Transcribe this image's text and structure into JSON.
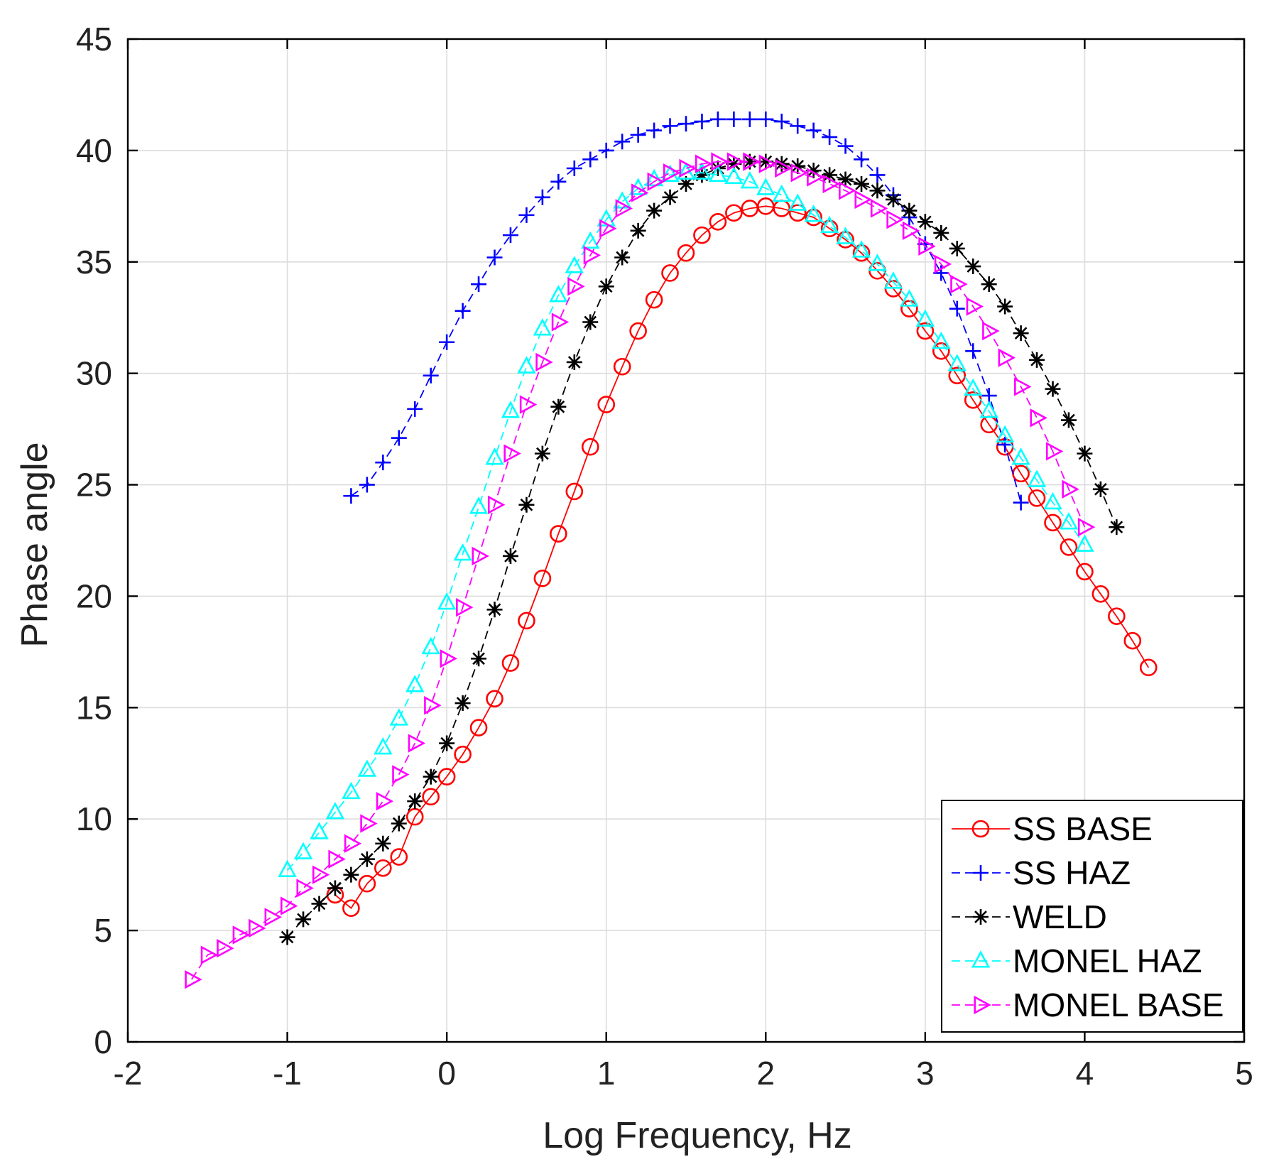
{
  "chart_data": {
    "type": "line",
    "xlabel": "Log Frequency, Hz",
    "ylabel": "Phase angle",
    "xlim": [
      -2,
      5
    ],
    "ylim": [
      0,
      45
    ],
    "xticks": [
      -2,
      -1,
      0,
      1,
      2,
      3,
      4,
      5
    ],
    "yticks": [
      0,
      5,
      10,
      15,
      20,
      25,
      30,
      35,
      40,
      45
    ],
    "xtick_labels": [
      "-2",
      "-1",
      "0",
      "1",
      "2",
      "3",
      "4",
      "5"
    ],
    "ytick_labels": [
      "0",
      "5",
      "10",
      "15",
      "20",
      "25",
      "30",
      "35",
      "40",
      "45"
    ],
    "grid": true,
    "legend_position": "bottom-right",
    "series": [
      {
        "name": "SS BASE",
        "color": "#ff0000",
        "marker": "circle",
        "line_style": "solid",
        "x": [
          -0.7,
          -0.6,
          -0.5,
          -0.4,
          -0.3,
          -0.2,
          -0.1,
          0,
          0.1,
          0.2,
          0.3,
          0.4,
          0.5,
          0.6,
          0.7,
          0.8,
          0.9,
          1.0,
          1.1,
          1.2,
          1.3,
          1.4,
          1.5,
          1.6,
          1.7,
          1.8,
          1.9,
          2.0,
          2.1,
          2.2,
          2.3,
          2.4,
          2.5,
          2.6,
          2.7,
          2.8,
          2.9,
          3.0,
          3.1,
          3.2,
          3.3,
          3.4,
          3.5,
          3.6,
          3.7,
          3.8,
          3.9,
          4.0,
          4.1,
          4.2,
          4.3,
          4.4
        ],
        "y": [
          6.6,
          6.0,
          7.1,
          7.8,
          8.3,
          10.1,
          11.0,
          11.9,
          12.9,
          14.1,
          15.4,
          17.0,
          18.9,
          20.8,
          22.8,
          24.7,
          26.7,
          28.6,
          30.3,
          31.9,
          33.3,
          34.5,
          35.4,
          36.2,
          36.8,
          37.2,
          37.4,
          37.5,
          37.4,
          37.2,
          37.0,
          36.5,
          36.0,
          35.4,
          34.6,
          33.8,
          32.9,
          31.9,
          31.0,
          29.9,
          28.8,
          27.7,
          26.7,
          25.5,
          24.4,
          23.3,
          22.2,
          21.1,
          20.1,
          19.1,
          18.0,
          16.8
        ]
      },
      {
        "name": "SS HAZ",
        "color": "#0000ff",
        "marker": "plus",
        "line_style": "dashed",
        "x": [
          -0.6,
          -0.5,
          -0.4,
          -0.3,
          -0.2,
          -0.1,
          0,
          0.1,
          0.2,
          0.3,
          0.4,
          0.5,
          0.6,
          0.7,
          0.8,
          0.9,
          1.0,
          1.1,
          1.2,
          1.3,
          1.4,
          1.5,
          1.6,
          1.7,
          1.8,
          1.9,
          2.0,
          2.1,
          2.2,
          2.3,
          2.4,
          2.5,
          2.6,
          2.7,
          2.8,
          2.9,
          3.0,
          3.1,
          3.2,
          3.3,
          3.4,
          3.5,
          3.6
        ],
        "y": [
          24.5,
          25.0,
          26.0,
          27.1,
          28.4,
          29.9,
          31.4,
          32.8,
          34.0,
          35.2,
          36.2,
          37.1,
          37.9,
          38.6,
          39.2,
          39.6,
          40.0,
          40.4,
          40.7,
          40.9,
          41.1,
          41.2,
          41.3,
          41.4,
          41.4,
          41.4,
          41.4,
          41.3,
          41.1,
          40.9,
          40.6,
          40.2,
          39.6,
          38.9,
          38.0,
          37.0,
          35.8,
          34.5,
          32.9,
          31.0,
          29.0,
          26.8,
          24.2
        ]
      },
      {
        "name": "WELD",
        "color": "#000000",
        "marker": "asterisk",
        "line_style": "dashed",
        "x": [
          -1.0,
          -0.9,
          -0.8,
          -0.7,
          -0.6,
          -0.5,
          -0.4,
          -0.3,
          -0.2,
          -0.1,
          0,
          0.1,
          0.2,
          0.3,
          0.4,
          0.5,
          0.6,
          0.7,
          0.8,
          0.9,
          1.0,
          1.1,
          1.2,
          1.3,
          1.4,
          1.5,
          1.6,
          1.7,
          1.8,
          1.9,
          2.0,
          2.1,
          2.2,
          2.3,
          2.4,
          2.5,
          2.6,
          2.7,
          2.8,
          2.9,
          3.0,
          3.1,
          3.2,
          3.3,
          3.4,
          3.5,
          3.6,
          3.7,
          3.8,
          3.9,
          4.0,
          4.1,
          4.2
        ],
        "y": [
          4.7,
          5.5,
          6.2,
          6.9,
          7.5,
          8.2,
          8.9,
          9.8,
          10.8,
          11.9,
          13.4,
          15.2,
          17.2,
          19.4,
          21.8,
          24.1,
          26.4,
          28.5,
          30.5,
          32.3,
          33.9,
          35.2,
          36.4,
          37.3,
          37.9,
          38.5,
          38.9,
          39.2,
          39.4,
          39.5,
          39.5,
          39.4,
          39.3,
          39.1,
          38.9,
          38.7,
          38.5,
          38.2,
          37.8,
          37.3,
          36.8,
          36.3,
          35.6,
          34.8,
          34.0,
          33.0,
          31.8,
          30.6,
          29.3,
          27.9,
          26.4,
          24.8,
          23.1
        ]
      },
      {
        "name": "MONEL HAZ",
        "color": "#00ffff",
        "marker": "triangle-up",
        "line_style": "dashed",
        "x": [
          -1.0,
          -0.9,
          -0.8,
          -0.7,
          -0.6,
          -0.5,
          -0.4,
          -0.3,
          -0.2,
          -0.1,
          0,
          0.1,
          0.2,
          0.3,
          0.4,
          0.5,
          0.6,
          0.7,
          0.8,
          0.9,
          1.0,
          1.1,
          1.2,
          1.3,
          1.4,
          1.5,
          1.6,
          1.7,
          1.8,
          1.9,
          2.0,
          2.1,
          2.2,
          2.3,
          2.4,
          2.5,
          2.6,
          2.7,
          2.8,
          2.9,
          3.0,
          3.1,
          3.2,
          3.3,
          3.4,
          3.5,
          3.6,
          3.7,
          3.8,
          3.9,
          4.0
        ],
        "y": [
          7.7,
          8.5,
          9.4,
          10.3,
          11.2,
          12.2,
          13.2,
          14.5,
          16.0,
          17.7,
          19.7,
          21.9,
          24.0,
          26.2,
          28.3,
          30.3,
          32.0,
          33.5,
          34.8,
          35.9,
          36.9,
          37.7,
          38.3,
          38.7,
          38.9,
          39.0,
          39.0,
          38.9,
          38.8,
          38.6,
          38.3,
          38.0,
          37.6,
          37.1,
          36.6,
          36.1,
          35.5,
          34.9,
          34.1,
          33.3,
          32.4,
          31.4,
          30.4,
          29.3,
          28.3,
          27.2,
          26.2,
          25.2,
          24.2,
          23.3,
          22.3
        ]
      },
      {
        "name": "MONEL BASE",
        "color": "#ff00ff",
        "marker": "triangle-right",
        "line_style": "dashed",
        "x": [
          -1.6,
          -1.5,
          -1.4,
          -1.3,
          -1.2,
          -1.1,
          -1.0,
          -0.9,
          -0.8,
          -0.7,
          -0.6,
          -0.5,
          -0.4,
          -0.3,
          -0.2,
          -0.1,
          0,
          0.1,
          0.2,
          0.3,
          0.4,
          0.5,
          0.6,
          0.7,
          0.8,
          0.9,
          1.0,
          1.1,
          1.2,
          1.3,
          1.4,
          1.5,
          1.6,
          1.7,
          1.8,
          1.9,
          2.0,
          2.1,
          2.2,
          2.3,
          2.4,
          2.5,
          2.6,
          2.7,
          2.8,
          2.9,
          3.0,
          3.1,
          3.2,
          3.3,
          3.4,
          3.5,
          3.6,
          3.7,
          3.8,
          3.9,
          4.0
        ],
        "y": [
          2.8,
          3.9,
          4.2,
          4.8,
          5.1,
          5.6,
          6.1,
          6.9,
          7.5,
          8.2,
          8.9,
          9.8,
          10.8,
          12.0,
          13.4,
          15.1,
          17.2,
          19.5,
          21.8,
          24.1,
          26.4,
          28.6,
          30.5,
          32.3,
          33.9,
          35.3,
          36.5,
          37.4,
          38.1,
          38.6,
          39.0,
          39.2,
          39.4,
          39.5,
          39.5,
          39.5,
          39.4,
          39.2,
          39.0,
          38.8,
          38.5,
          38.2,
          37.8,
          37.4,
          36.9,
          36.4,
          35.7,
          34.9,
          34.0,
          33.0,
          31.9,
          30.7,
          29.4,
          28.0,
          26.5,
          24.8,
          23.1
        ]
      }
    ]
  }
}
